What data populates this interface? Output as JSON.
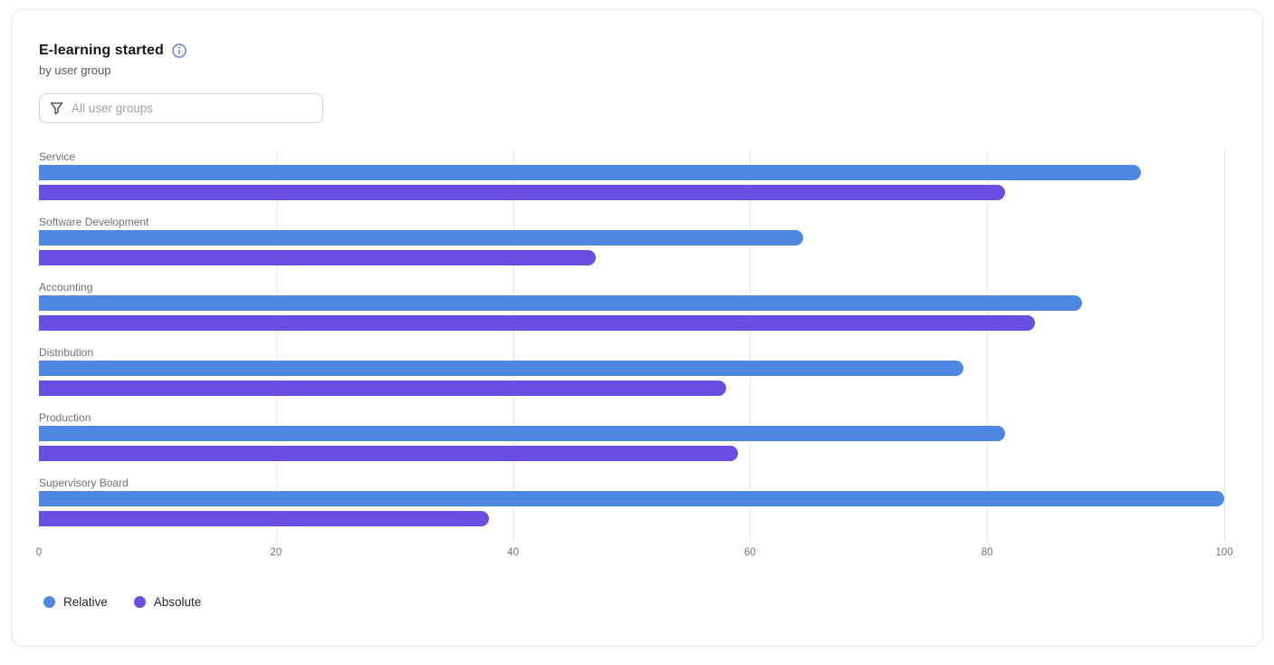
{
  "card": {
    "title": "E-learning started",
    "subtitle": "by user group"
  },
  "filter": {
    "placeholder": "All user groups"
  },
  "chart_data": {
    "type": "bar",
    "orientation": "horizontal",
    "title": "E-learning started",
    "subtitle": "by user group",
    "categories": [
      "Service",
      "Software Development",
      "Accounting",
      "Distribution",
      "Production",
      "Supervisory Board"
    ],
    "series": [
      {
        "name": "Relative",
        "color": "#4E88E2",
        "values": [
          93,
          64.5,
          88,
          78,
          81.5,
          100
        ]
      },
      {
        "name": "Absolute",
        "color": "#6A4EE1",
        "values": [
          81.5,
          47,
          84,
          58,
          59,
          38
        ]
      }
    ],
    "xlim": [
      0,
      100
    ],
    "xticks": [
      0,
      20,
      40,
      60,
      80,
      100
    ],
    "grid": "vertical-only",
    "gridline_color": "#e5e5ea",
    "legend_position": "bottom"
  },
  "legend": {
    "items": [
      {
        "label": "Relative",
        "color": "#4E88E2"
      },
      {
        "label": "Absolute",
        "color": "#6A4EE1"
      }
    ]
  },
  "colors": {
    "accent_blue": "#4E88E2",
    "accent_purple": "#6A4EE1",
    "info_icon": "#5b7ce0",
    "text_primary": "#18181b",
    "text_secondary": "#55555f",
    "text_muted": "#71717c"
  }
}
